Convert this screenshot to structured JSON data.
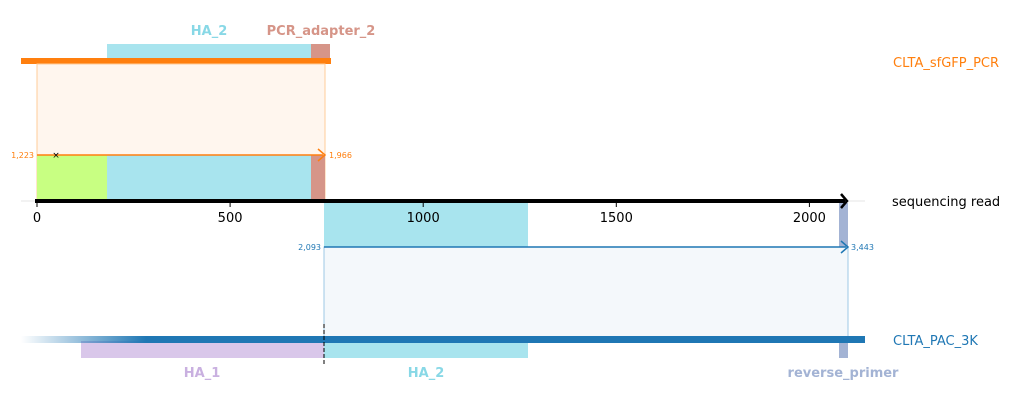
{
  "colors": {
    "orange": "#ff7f0e",
    "blue": "#1f77b4",
    "ha": "#a8e4ee",
    "pcr_adapter": "#d69588",
    "green": "#c8ff82",
    "ha1": "#d9c7ea",
    "reverse_primer": "#a3b3d4",
    "axis": "#000000"
  },
  "reference": {
    "label": "sequencing read",
    "length": 2100,
    "ticks": [
      "0",
      "500",
      "1000",
      "1500",
      "2000"
    ]
  },
  "top_read": {
    "label": "CLTA_sfGFP_PCR",
    "start_label": "1,223",
    "end_label": "1,966",
    "features": [
      {
        "name": "HA_2",
        "label": "HA_2"
      },
      {
        "name": "PCR_adapter_2",
        "label": "PCR_adapter_2"
      }
    ]
  },
  "bottom_read": {
    "label": "CLTA_PAC_3K",
    "start_label": "2,093",
    "end_label": "3,443",
    "features": [
      {
        "name": "HA_1",
        "label": "HA_1"
      },
      {
        "name": "HA_2",
        "label": "HA_2"
      },
      {
        "name": "reverse_primer",
        "label": "reverse_primer"
      }
    ]
  }
}
